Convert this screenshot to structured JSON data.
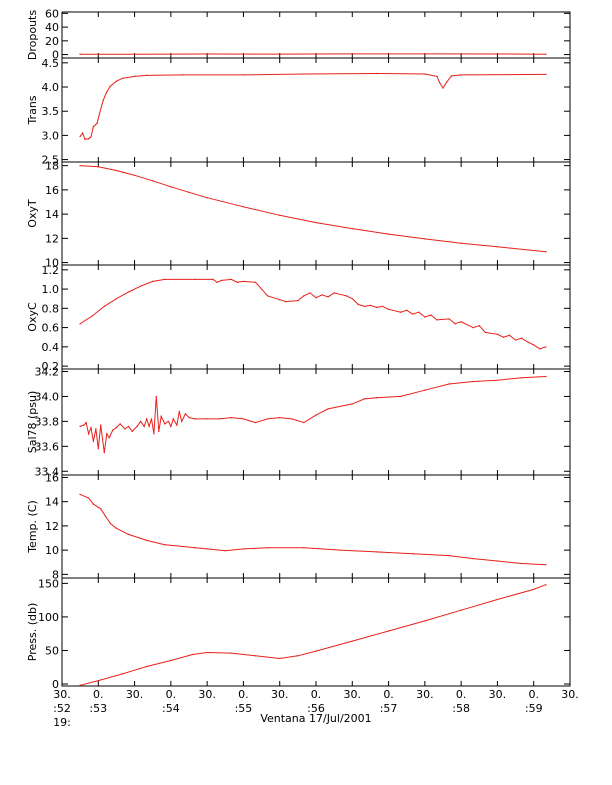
{
  "title": "",
  "accent_color": "#e8201a",
  "x_axis": {
    "label": "Ventana 17/Jul/2001",
    "ticks": [
      {
        "t": 0,
        "lines": [
          "30.",
          ":52",
          "19:"
        ]
      },
      {
        "t": 30,
        "lines": [
          "0.",
          ":53",
          ""
        ]
      },
      {
        "t": 60,
        "lines": [
          "30.",
          "",
          ""
        ]
      },
      {
        "t": 90,
        "lines": [
          "0.",
          ":54",
          ""
        ]
      },
      {
        "t": 120,
        "lines": [
          "30.",
          "",
          ""
        ]
      },
      {
        "t": 150,
        "lines": [
          "0.",
          ":55",
          ""
        ]
      },
      {
        "t": 180,
        "lines": [
          "30.",
          "",
          ""
        ]
      },
      {
        "t": 210,
        "lines": [
          "0.",
          ":56",
          ""
        ]
      },
      {
        "t": 240,
        "lines": [
          "30.",
          "",
          ""
        ]
      },
      {
        "t": 270,
        "lines": [
          "0.",
          ":57",
          ""
        ]
      },
      {
        "t": 300,
        "lines": [
          "30.",
          "",
          ""
        ]
      },
      {
        "t": 330,
        "lines": [
          "0.",
          ":58",
          ""
        ]
      },
      {
        "t": 360,
        "lines": [
          "30.",
          "",
          ""
        ]
      },
      {
        "t": 390,
        "lines": [
          "0.",
          ":59",
          ""
        ]
      },
      {
        "t": 420,
        "lines": [
          "30.",
          "",
          ""
        ]
      }
    ],
    "range": [
      0,
      420
    ],
    "unit_note": "seconds after 19:52:30"
  },
  "chart_data": [
    {
      "type": "line",
      "ylabel": "Dropouts",
      "ylim": [
        -5,
        62
      ],
      "yticks": [
        0,
        20,
        40,
        60
      ],
      "ytick_labels": [
        "0",
        "20",
        "40",
        "60"
      ],
      "series": [
        {
          "points": [
            [
              15,
              0.5
            ],
            [
              60,
              0.6
            ],
            [
              120,
              0.8
            ],
            [
              180,
              0.7
            ],
            [
              240,
              0.9
            ],
            [
              300,
              1.0
            ],
            [
              360,
              0.8
            ],
            [
              400,
              0.6
            ]
          ]
        }
      ]
    },
    {
      "type": "line",
      "ylabel": "Trans",
      "ylim": [
        2.45,
        4.6
      ],
      "yticks": [
        2.5,
        3.0,
        3.5,
        4.0,
        4.5
      ],
      "ytick_labels": [
        "2.5",
        "3.0",
        "3.5",
        "4.0",
        "4.5"
      ],
      "series": [
        {
          "points": [
            [
              15,
              2.98
            ],
            [
              17,
              3.05
            ],
            [
              19,
              2.92
            ],
            [
              22,
              2.93
            ],
            [
              24,
              2.97
            ],
            [
              26,
              3.18
            ],
            [
              29,
              3.25
            ],
            [
              31,
              3.45
            ],
            [
              34,
              3.72
            ],
            [
              37,
              3.9
            ],
            [
              40,
              4.02
            ],
            [
              45,
              4.12
            ],
            [
              50,
              4.18
            ],
            [
              60,
              4.22
            ],
            [
              70,
              4.24
            ],
            [
              100,
              4.25
            ],
            [
              150,
              4.25
            ],
            [
              200,
              4.27
            ],
            [
              260,
              4.28
            ],
            [
              300,
              4.27
            ],
            [
              310,
              4.22
            ],
            [
              312,
              4.1
            ],
            [
              315,
              3.98
            ],
            [
              318,
              4.1
            ],
            [
              322,
              4.23
            ],
            [
              330,
              4.25
            ],
            [
              400,
              4.26
            ]
          ]
        }
      ]
    },
    {
      "type": "line",
      "ylabel": "OxyT",
      "ylim": [
        9.8,
        18.3
      ],
      "yticks": [
        10,
        12,
        14,
        16,
        18
      ],
      "ytick_labels": [
        "10",
        "12",
        "14",
        "16",
        "18"
      ],
      "series": [
        {
          "points": [
            [
              15,
              18.0
            ],
            [
              30,
              17.9
            ],
            [
              45,
              17.6
            ],
            [
              60,
              17.2
            ],
            [
              75,
              16.75
            ],
            [
              90,
              16.25
            ],
            [
              105,
              15.8
            ],
            [
              120,
              15.35
            ],
            [
              150,
              14.6
            ],
            [
              180,
              13.9
            ],
            [
              210,
              13.3
            ],
            [
              240,
              12.8
            ],
            [
              270,
              12.35
            ],
            [
              300,
              11.95
            ],
            [
              330,
              11.6
            ],
            [
              360,
              11.3
            ],
            [
              400,
              10.9
            ]
          ]
        }
      ]
    },
    {
      "type": "line",
      "ylabel": "OxyC",
      "ylim": [
        0.17,
        1.25
      ],
      "yticks": [
        0.2,
        0.4,
        0.6,
        0.8,
        1.0,
        1.2
      ],
      "ytick_labels": [
        "0.2",
        "0.4",
        "0.6",
        "0.8",
        "1.0",
        "1.2"
      ],
      "series": [
        {
          "points": [
            [
              15,
              0.64
            ],
            [
              25,
              0.72
            ],
            [
              35,
              0.82
            ],
            [
              45,
              0.9
            ],
            [
              55,
              0.97
            ],
            [
              65,
              1.03
            ],
            [
              75,
              1.08
            ],
            [
              85,
              1.1
            ],
            [
              110,
              1.1
            ],
            [
              125,
              1.1
            ],
            [
              128,
              1.07
            ],
            [
              132,
              1.09
            ],
            [
              140,
              1.1
            ],
            [
              145,
              1.07
            ],
            [
              150,
              1.08
            ],
            [
              160,
              1.07
            ],
            [
              165,
              1.0
            ],
            [
              170,
              0.93
            ],
            [
              180,
              0.89
            ],
            [
              185,
              0.87
            ],
            [
              195,
              0.88
            ],
            [
              200,
              0.93
            ],
            [
              205,
              0.96
            ],
            [
              210,
              0.91
            ],
            [
              215,
              0.94
            ],
            [
              220,
              0.92
            ],
            [
              225,
              0.96
            ],
            [
              235,
              0.93
            ],
            [
              240,
              0.9
            ],
            [
              245,
              0.84
            ],
            [
              250,
              0.82
            ],
            [
              255,
              0.83
            ],
            [
              260,
              0.81
            ],
            [
              265,
              0.82
            ],
            [
              270,
              0.79
            ],
            [
              280,
              0.76
            ],
            [
              285,
              0.78
            ],
            [
              290,
              0.74
            ],
            [
              295,
              0.76
            ],
            [
              300,
              0.71
            ],
            [
              305,
              0.73
            ],
            [
              310,
              0.68
            ],
            [
              320,
              0.69
            ],
            [
              325,
              0.64
            ],
            [
              330,
              0.66
            ],
            [
              340,
              0.6
            ],
            [
              345,
              0.62
            ],
            [
              350,
              0.55
            ],
            [
              360,
              0.53
            ],
            [
              365,
              0.5
            ],
            [
              370,
              0.52
            ],
            [
              375,
              0.47
            ],
            [
              380,
              0.49
            ],
            [
              385,
              0.45
            ],
            [
              390,
              0.42
            ],
            [
              395,
              0.38
            ],
            [
              400,
              0.4
            ]
          ]
        }
      ]
    },
    {
      "type": "line",
      "ylabel": "Sal78 (psu)",
      "ylim": [
        33.37,
        34.22
      ],
      "yticks": [
        33.4,
        33.6,
        33.8,
        34.0,
        34.2
      ],
      "ytick_labels": [
        "33.4",
        "33.6",
        "33.8",
        "34.0",
        "34.2"
      ],
      "series": [
        {
          "points": [
            [
              15,
              33.76
            ],
            [
              18,
              33.77
            ],
            [
              20,
              33.79
            ],
            [
              22,
              33.7
            ],
            [
              24,
              33.75
            ],
            [
              26,
              33.64
            ],
            [
              28,
              33.74
            ],
            [
              30,
              33.58
            ],
            [
              32,
              33.77
            ],
            [
              35,
              33.55
            ],
            [
              37,
              33.7
            ],
            [
              39,
              33.67
            ],
            [
              42,
              33.73
            ],
            [
              45,
              33.75
            ],
            [
              48,
              33.78
            ],
            [
              52,
              33.74
            ],
            [
              55,
              33.76
            ],
            [
              58,
              33.72
            ],
            [
              62,
              33.76
            ],
            [
              65,
              33.8
            ],
            [
              68,
              33.76
            ],
            [
              70,
              33.82
            ],
            [
              72,
              33.76
            ],
            [
              74,
              33.82
            ],
            [
              76,
              33.7
            ],
            [
              78,
              34.0
            ],
            [
              80,
              33.72
            ],
            [
              82,
              33.84
            ],
            [
              85,
              33.78
            ],
            [
              88,
              33.8
            ],
            [
              90,
              33.76
            ],
            [
              92,
              33.82
            ],
            [
              95,
              33.77
            ],
            [
              97,
              33.88
            ],
            [
              99,
              33.8
            ],
            [
              102,
              33.86
            ],
            [
              105,
              33.83
            ],
            [
              110,
              33.82
            ],
            [
              120,
              33.82
            ],
            [
              130,
              33.82
            ],
            [
              140,
              33.83
            ],
            [
              150,
              33.82
            ],
            [
              160,
              33.79
            ],
            [
              170,
              33.82
            ],
            [
              180,
              33.83
            ],
            [
              190,
              33.82
            ],
            [
              200,
              33.79
            ],
            [
              210,
              33.85
            ],
            [
              220,
              33.9
            ],
            [
              240,
              33.94
            ],
            [
              250,
              33.98
            ],
            [
              260,
              33.99
            ],
            [
              280,
              34.0
            ],
            [
              300,
              34.05
            ],
            [
              320,
              34.1
            ],
            [
              340,
              34.12
            ],
            [
              360,
              34.13
            ],
            [
              380,
              34.15
            ],
            [
              400,
              34.16
            ]
          ]
        }
      ]
    },
    {
      "type": "line",
      "ylabel": "Temp. (C)",
      "ylim": [
        7.7,
        16.2
      ],
      "yticks": [
        8,
        10,
        12,
        14,
        16
      ],
      "ytick_labels": [
        "8",
        "10",
        "12",
        "14",
        "16"
      ],
      "series": [
        {
          "points": [
            [
              15,
              14.6
            ],
            [
              22,
              14.3
            ],
            [
              26,
              13.8
            ],
            [
              32,
              13.4
            ],
            [
              36,
              12.8
            ],
            [
              40,
              12.2
            ],
            [
              45,
              11.8
            ],
            [
              55,
              11.3
            ],
            [
              70,
              10.8
            ],
            [
              85,
              10.45
            ],
            [
              100,
              10.3
            ],
            [
              110,
              10.2
            ],
            [
              120,
              10.1
            ],
            [
              135,
              9.95
            ],
            [
              150,
              10.1
            ],
            [
              170,
              10.2
            ],
            [
              200,
              10.2
            ],
            [
              230,
              10.0
            ],
            [
              260,
              9.85
            ],
            [
              290,
              9.7
            ],
            [
              320,
              9.55
            ],
            [
              340,
              9.3
            ],
            [
              360,
              9.1
            ],
            [
              380,
              8.9
            ],
            [
              400,
              8.8
            ]
          ]
        }
      ]
    },
    {
      "type": "line",
      "ylabel": "Press. (db)",
      "ylim": [
        -3,
        158
      ],
      "yticks": [
        0,
        50,
        100,
        150
      ],
      "ytick_labels": [
        "0",
        "50",
        "100",
        "150"
      ],
      "series": [
        {
          "points": [
            [
              15,
              -2
            ],
            [
              30,
              5
            ],
            [
              50,
              15
            ],
            [
              70,
              26
            ],
            [
              90,
              35
            ],
            [
              108,
              44
            ],
            [
              120,
              47
            ],
            [
              140,
              46
            ],
            [
              160,
              42
            ],
            [
              180,
              38
            ],
            [
              195,
              42
            ],
            [
              210,
              49
            ],
            [
              240,
              64
            ],
            [
              270,
              79
            ],
            [
              300,
              94
            ],
            [
              330,
              110
            ],
            [
              360,
              126
            ],
            [
              390,
              141
            ],
            [
              400,
              148
            ]
          ]
        }
      ]
    }
  ]
}
